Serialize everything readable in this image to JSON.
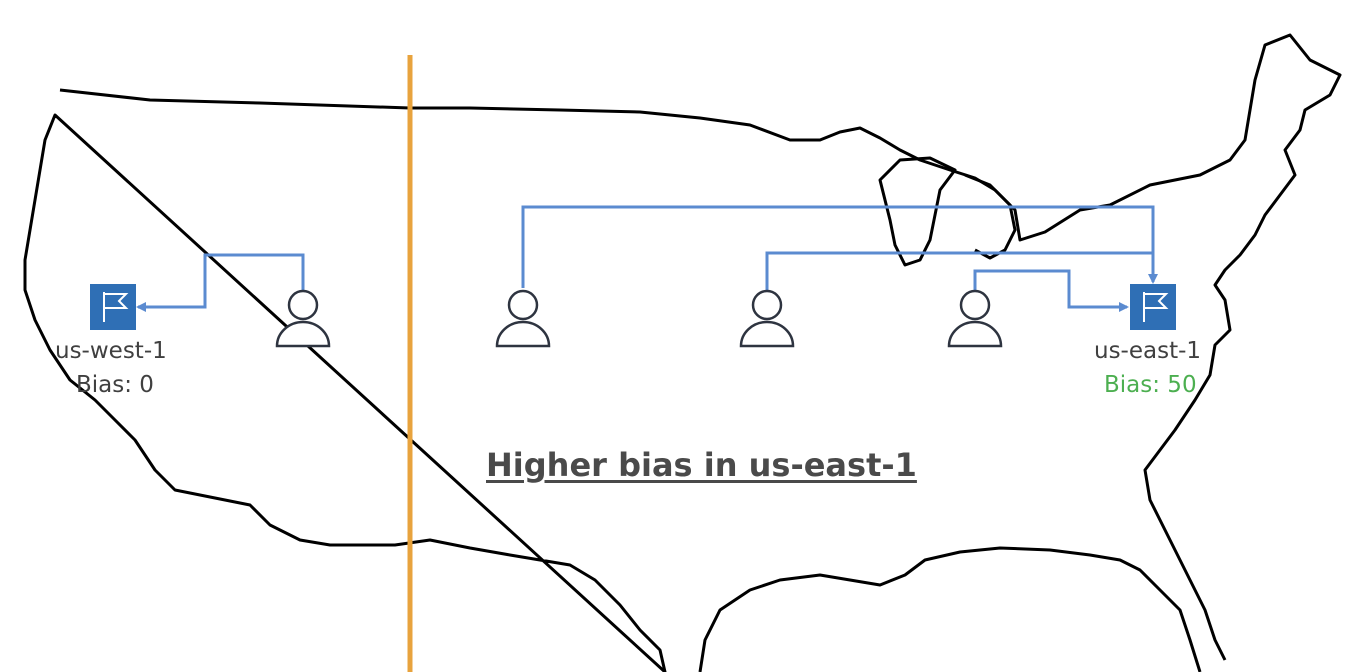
{
  "caption": "Higher bias in us-east-1",
  "regions": [
    {
      "id": "us-west-1",
      "name": "us-west-1",
      "bias": "Bias: 0",
      "bias_color": "#404040"
    },
    {
      "id": "us-east-1",
      "name": "us-east-1",
      "bias": "Bias: 50",
      "bias_color": "#4caf50"
    }
  ],
  "users": [
    {
      "id": "user-1",
      "routed_to": "us-west-1"
    },
    {
      "id": "user-2",
      "routed_to": "us-east-1"
    },
    {
      "id": "user-3",
      "routed_to": "us-east-1"
    },
    {
      "id": "user-4",
      "routed_to": "us-east-1"
    }
  ],
  "colors": {
    "connector": "#5b8bd0",
    "region_icon": "#2f6fb5",
    "divider": "#e8a33d",
    "map_outline": "#000000",
    "text": "#404040",
    "bias_high": "#4caf50"
  },
  "icons": [
    "flag-icon",
    "user-icon"
  ]
}
